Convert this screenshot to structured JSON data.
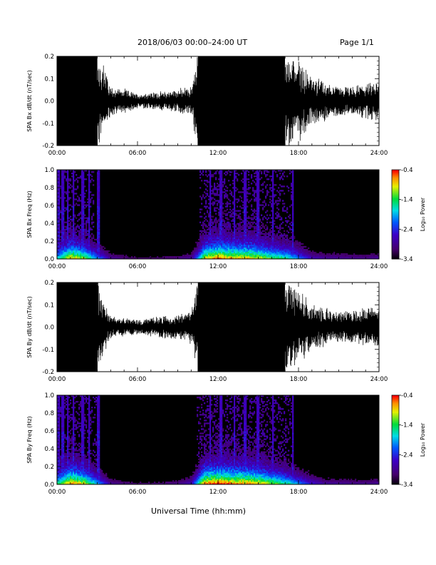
{
  "header": {
    "title": "2018/06/03  00:00–24:00 UT",
    "page": "Page 1/1"
  },
  "footer": {
    "xlabel": "Universal Time (hh:mm)"
  },
  "colorbar": {
    "title": "Log₁₀ Power",
    "ticks": [
      "-0.4",
      "-1.4",
      "-2.4",
      "-3.4"
    ],
    "range": [
      -3.4,
      -0.4
    ]
  },
  "chart_data": [
    {
      "type": "line",
      "ylabel": "SPA Bx dB/dt (nT/sec)",
      "xlim": [
        0,
        24
      ],
      "ylim": [
        -0.2,
        0.2
      ],
      "xticks": [
        "00:00",
        "06:00",
        "12:00",
        "18:00",
        "24:00"
      ],
      "yticks": [
        "0.2",
        "0.1",
        "0.0",
        "-0.1",
        "-0.2"
      ],
      "envelope_time_hr": [
        0,
        1,
        2,
        3,
        3.5,
        4,
        5,
        6,
        7,
        8,
        9,
        10,
        10.5,
        11,
        12,
        13,
        14,
        15,
        16,
        17,
        18,
        19,
        20,
        21,
        22,
        23,
        24
      ],
      "envelope_amplitude": [
        0.2,
        0.2,
        0.2,
        0.2,
        0.15,
        0.06,
        0.05,
        0.03,
        0.035,
        0.04,
        0.05,
        0.06,
        0.2,
        0.2,
        0.2,
        0.2,
        0.2,
        0.2,
        0.2,
        0.2,
        0.18,
        0.1,
        0.08,
        0.06,
        0.06,
        0.07,
        0.08
      ]
    },
    {
      "type": "heatmap",
      "ylabel": "SPA Bx Freq (Hz)",
      "xlim": [
        0,
        24
      ],
      "ylim": [
        0,
        1
      ],
      "xticks": [
        "00:00",
        "06:00",
        "12:00",
        "18:00",
        "24:00"
      ],
      "yticks": [
        "1.0",
        "0.8",
        "0.6",
        "0.4",
        "0.2",
        "0.0"
      ],
      "activity_time_hr": [
        0,
        1,
        2,
        3,
        4,
        5,
        6,
        7,
        8,
        9,
        10,
        10.5,
        11,
        12,
        13,
        14,
        15,
        16,
        17,
        18,
        19,
        20,
        21,
        22,
        23,
        24
      ],
      "activity_level": [
        0.55,
        0.8,
        0.7,
        0.45,
        0.2,
        0.15,
        0.12,
        0.12,
        0.13,
        0.15,
        0.2,
        0.45,
        0.75,
        0.85,
        0.8,
        0.8,
        0.75,
        0.65,
        0.6,
        0.45,
        0.25,
        0.2,
        0.2,
        0.18,
        0.18,
        0.2
      ],
      "spike_time_hr": [
        0.1,
        0.4,
        0.8,
        1.2,
        1.9,
        2.4,
        3.1,
        11.4,
        12.2,
        13.2,
        14.0,
        15.0,
        16.1,
        17.6
      ]
    },
    {
      "type": "line",
      "ylabel": "SPA By dB/dt (nT/sec)",
      "xlim": [
        0,
        24
      ],
      "ylim": [
        -0.2,
        0.2
      ],
      "xticks": [
        "00:00",
        "06:00",
        "12:00",
        "18:00",
        "24:00"
      ],
      "yticks": [
        "0.2",
        "0.1",
        "0.0",
        "-0.1",
        "-0.2"
      ],
      "envelope_time_hr": [
        0,
        1,
        2,
        3,
        3.5,
        4,
        5,
        6,
        7,
        8,
        9,
        10,
        10.5,
        11,
        12,
        13,
        14,
        15,
        16,
        17,
        18,
        19,
        20,
        21,
        22,
        23,
        24
      ],
      "envelope_amplitude": [
        0.2,
        0.2,
        0.2,
        0.2,
        0.12,
        0.05,
        0.04,
        0.03,
        0.04,
        0.05,
        0.05,
        0.07,
        0.2,
        0.2,
        0.2,
        0.2,
        0.2,
        0.2,
        0.2,
        0.2,
        0.16,
        0.09,
        0.08,
        0.06,
        0.07,
        0.08,
        0.09
      ]
    },
    {
      "type": "heatmap",
      "ylabel": "SPA By Freq (Hz)",
      "xlim": [
        0,
        24
      ],
      "ylim": [
        0,
        1
      ],
      "xticks": [
        "00:00",
        "06:00",
        "12:00",
        "18:00",
        "24:00"
      ],
      "yticks": [
        "1.0",
        "0.8",
        "0.6",
        "0.4",
        "0.2",
        "0.0"
      ],
      "activity_time_hr": [
        0,
        1,
        2,
        3,
        4,
        5,
        6,
        7,
        8,
        9,
        10,
        10.5,
        11,
        12,
        13,
        14,
        15,
        16,
        17,
        18,
        19,
        20,
        21,
        22,
        23,
        24
      ],
      "activity_level": [
        0.6,
        0.85,
        0.75,
        0.5,
        0.2,
        0.15,
        0.12,
        0.12,
        0.14,
        0.16,
        0.25,
        0.55,
        0.85,
        0.9,
        0.85,
        0.85,
        0.8,
        0.7,
        0.6,
        0.45,
        0.3,
        0.2,
        0.2,
        0.18,
        0.18,
        0.2
      ],
      "spike_time_hr": [
        0.1,
        0.4,
        0.8,
        1.2,
        1.9,
        2.4,
        3.1,
        11.4,
        12.2,
        13.2,
        14.0,
        15.0,
        16.1,
        17.6
      ]
    }
  ]
}
